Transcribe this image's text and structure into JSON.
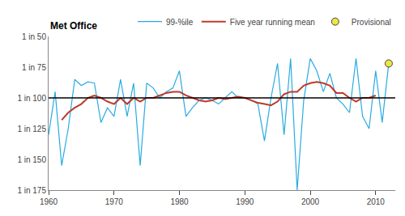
{
  "chart_data": {
    "type": "line",
    "series": [
      {
        "name": "99-%ile",
        "type": "line",
        "color": "#29ABE2",
        "x": [
          1960,
          1961,
          1962,
          1963,
          1964,
          1965,
          1966,
          1967,
          1968,
          1969,
          1970,
          1971,
          1972,
          1973,
          1974,
          1975,
          1976,
          1977,
          1978,
          1979,
          1980,
          1981,
          1982,
          1983,
          1984,
          1985,
          1986,
          1987,
          1988,
          1989,
          1990,
          1991,
          1992,
          1993,
          1994,
          1995,
          1996,
          1997,
          1998,
          1999,
          2000,
          2001,
          2002,
          2003,
          2004,
          2005,
          2006,
          2007,
          2008,
          2009,
          2010,
          2011,
          2012
        ],
        "values": [
          130,
          95,
          155,
          125,
          85,
          90,
          87,
          88,
          120,
          108,
          115,
          85,
          115,
          88,
          155,
          88,
          92,
          100,
          95,
          92,
          78,
          115,
          108,
          102,
          100,
          102,
          105,
          100,
          95,
          100,
          100,
          102,
          105,
          135,
          100,
          72,
          130,
          68,
          175,
          102,
          68,
          78,
          95,
          80,
          100,
          105,
          112,
          68,
          115,
          125,
          78,
          120,
          72
        ]
      },
      {
        "name": "Five year running mean",
        "type": "line",
        "color": "#C0392B",
        "x": [
          1962,
          1963,
          1964,
          1965,
          1966,
          1967,
          1968,
          1969,
          1970,
          1971,
          1972,
          1973,
          1974,
          1975,
          1976,
          1977,
          1978,
          1979,
          1980,
          1981,
          1982,
          1983,
          1984,
          1985,
          1986,
          1987,
          1988,
          1989,
          1990,
          1991,
          1992,
          1993,
          1994,
          1995,
          1996,
          1997,
          1998,
          1999,
          2000,
          2001,
          2002,
          2003,
          2004,
          2005,
          2006,
          2007,
          2008,
          2009,
          2010
        ],
        "values": [
          118,
          112,
          108,
          105,
          100,
          98,
          100,
          103,
          105,
          100,
          105,
          100,
          103,
          100,
          100,
          98,
          96,
          95,
          95,
          98,
          100,
          102,
          103,
          102,
          100,
          101,
          100,
          99,
          100,
          102,
          104,
          105,
          106,
          103,
          97,
          95,
          95,
          90,
          88,
          87,
          88,
          90,
          96,
          96,
          100,
          103,
          100,
          100,
          98
        ]
      },
      {
        "name": "Provisional",
        "type": "scatter",
        "marker": "circle",
        "color": "#F0E442",
        "x": [
          2012
        ],
        "values": [
          72
        ]
      }
    ],
    "reference_line": {
      "value": 100,
      "color": "#000000"
    },
    "annotations": [
      {
        "text": "Met Office"
      }
    ],
    "xlim": [
      1960,
      2013
    ],
    "xticks": [
      1960,
      1970,
      1980,
      1990,
      2000,
      2010
    ],
    "ylim": [
      175,
      50
    ],
    "yticks": [
      {
        "value": 50,
        "label": "1 in 50"
      },
      {
        "value": 75,
        "label": "1 in 75"
      },
      {
        "value": 100,
        "label": "1 in 100"
      },
      {
        "value": 125,
        "label": "1 in 125"
      },
      {
        "value": 150,
        "label": "1 in 150"
      },
      {
        "value": 175,
        "label": "1 in 175"
      }
    ],
    "grid": false,
    "legend": "upper right"
  }
}
